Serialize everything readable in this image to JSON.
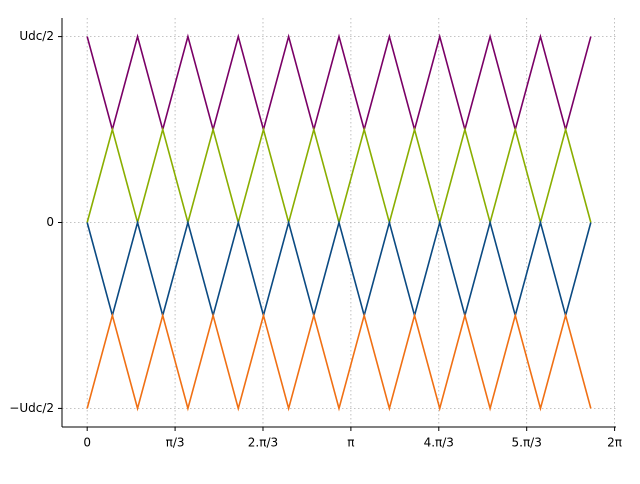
{
  "chart_data": {
    "type": "line",
    "x": [
      0,
      0.3,
      0.6,
      0.9,
      1.2,
      1.5,
      1.8,
      2.1,
      2.4,
      2.7,
      3.0,
      3.3,
      3.6,
      3.9,
      4.2,
      4.5,
      4.8,
      5.1,
      5.4,
      5.7,
      6.0
    ],
    "series": [
      {
        "color": "#7a0066",
        "values": [
          0.5,
          0.25,
          0.5,
          0.25,
          0.5,
          0.25,
          0.5,
          0.25,
          0.5,
          0.25,
          0.5,
          0.25,
          0.5,
          0.25,
          0.5,
          0.25,
          0.5,
          0.25,
          0.5,
          0.25,
          0.5
        ]
      },
      {
        "color": "#8aae00",
        "values": [
          0,
          0.25,
          0,
          0.25,
          0,
          0.25,
          0,
          0.25,
          0,
          0.25,
          0,
          0.25,
          0,
          0.25,
          0,
          0.25,
          0,
          0.25,
          0,
          0.25,
          0
        ]
      },
      {
        "color": "#0b4a82",
        "values": [
          0,
          -0.25,
          0,
          -0.25,
          0,
          -0.25,
          0,
          -0.25,
          0,
          -0.25,
          0,
          -0.25,
          0,
          -0.25,
          0,
          -0.25,
          0,
          -0.25,
          0,
          -0.25,
          0
        ]
      },
      {
        "color": "#f07014",
        "values": [
          -0.5,
          -0.25,
          -0.5,
          -0.25,
          -0.5,
          -0.25,
          -0.5,
          -0.25,
          -0.5,
          -0.25,
          -0.5,
          -0.25,
          -0.5,
          -0.25,
          -0.5,
          -0.25,
          -0.5,
          -0.25,
          -0.5,
          -0.25,
          -0.5
        ]
      }
    ],
    "xlim": [
      -0.3,
      6.3
    ],
    "ylim": [
      -0.55,
      0.55
    ],
    "xticks": [
      0,
      {
        "value": 1.0472,
        "label": "π/3"
      },
      {
        "value": 2.0944,
        "label": "2.π/3"
      },
      {
        "value": 3.1416,
        "label": "π"
      },
      {
        "value": 4.1888,
        "label": "4.π/3"
      },
      {
        "value": 5.236,
        "label": "5.π/3"
      },
      {
        "value": 6.2832,
        "label": "2π"
      }
    ],
    "yticks": [
      {
        "value": -0.5,
        "label": "−Udc/2"
      },
      0,
      {
        "value": 0.5,
        "label": "Udc/2"
      }
    ],
    "grid": true
  }
}
